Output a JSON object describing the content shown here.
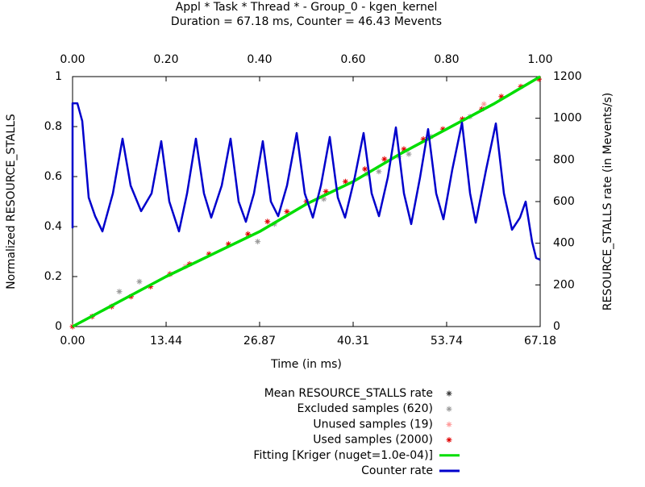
{
  "chart_data": {
    "type": "line",
    "title": "Appl * Task * Thread * - Group_0 - kgen_kernel",
    "subtitle": "Duration = 67.18 ms, Counter = 46.43 Mevents",
    "xlabel": "Time (in ms)",
    "ylabel": "Normalized RESOURCE_STALLS",
    "y2label": "RESOURCE_STALLS rate (in Mevents/s)",
    "xlim": [
      0,
      67.18
    ],
    "xticks": [
      {
        "value": 0,
        "label": "0.00"
      },
      13.44,
      26.87,
      40.31,
      53.74,
      67.18
    ],
    "x2lim": [
      0,
      1
    ],
    "x2ticks": [
      {
        "value": 0,
        "label": "0.00"
      },
      {
        "value": 0.2,
        "label": "0.20"
      },
      {
        "value": 0.4,
        "label": "0.40"
      },
      {
        "value": 0.6,
        "label": "0.60"
      },
      {
        "value": 0.8,
        "label": "0.80"
      },
      {
        "value": 1,
        "label": "1.00"
      }
    ],
    "ylim": [
      0,
      1
    ],
    "yticks": [
      0,
      0.2,
      0.4,
      0.6,
      0.8,
      1
    ],
    "y2lim": [
      0,
      1200
    ],
    "y2ticks": [
      0,
      200,
      400,
      600,
      800,
      1000,
      1200
    ],
    "grid": false,
    "legend": "bottom",
    "series": [
      {
        "name": "Mean RESOURCE_STALLS rate",
        "color": "#333333",
        "style": "points",
        "axis": "y",
        "x": [],
        "values": []
      },
      {
        "name": "Excluded samples (620)",
        "color": "#999999",
        "style": "points",
        "axis": "y",
        "x": [
          6.72,
          9.6,
          26.6,
          29,
          36.1,
          42.3,
          44,
          46.9,
          48.3,
          51.5,
          57.1
        ],
        "values": [
          0.14,
          0.18,
          0.34,
          0.41,
          0.51,
          0.61,
          0.62,
          0.68,
          0.69,
          0.76,
          0.84
        ]
      },
      {
        "name": "Unused samples (19)",
        "color": "#ff9999",
        "style": "points",
        "axis": "y",
        "x": [
          16.2,
          35.9,
          59.1
        ],
        "values": [
          0.24,
          0.52,
          0.89
        ]
      },
      {
        "name": "Used samples (2000)",
        "color": "#e00000",
        "style": "points",
        "axis": "y",
        "x": [
          0,
          2.8,
          5.6,
          8.4,
          11.2,
          14,
          16.8,
          19.6,
          22.4,
          25.2,
          28,
          30.8,
          33.6,
          36.4,
          39.2,
          42,
          44.8,
          47.6,
          50.4,
          53.2,
          56,
          58.8,
          61.6,
          64.4,
          67
        ],
        "values": [
          0,
          0.04,
          0.08,
          0.12,
          0.16,
          0.21,
          0.25,
          0.29,
          0.33,
          0.37,
          0.42,
          0.46,
          0.5,
          0.54,
          0.58,
          0.63,
          0.67,
          0.71,
          0.75,
          0.79,
          0.83,
          0.87,
          0.92,
          0.96,
          0.99
        ]
      },
      {
        "name": "Fitting [Kriger (nuget=1.0e-04)]",
        "color": "#00dd00",
        "style": "lines",
        "axis": "y",
        "x": [
          0,
          6.72,
          13.44,
          20.15,
          26.87,
          33.59,
          40.31,
          47.02,
          53.74,
          60.46,
          67.18
        ],
        "values": [
          0,
          0.1,
          0.2,
          0.29,
          0.38,
          0.49,
          0.58,
          0.69,
          0.79,
          0.89,
          1
        ]
      },
      {
        "name": "Counter rate",
        "color": "#0000cc",
        "style": "lines",
        "axis": "y2",
        "x": [
          0,
          0,
          0.69,
          1.39,
          2.32,
          3.24,
          4.29,
          5.79,
          7.18,
          8.34,
          9.85,
          11.35,
          12.74,
          13.9,
          15.29,
          16.45,
          17.72,
          18.88,
          19.92,
          21.43,
          22.7,
          23.86,
          24.9,
          26.06,
          27.33,
          28.49,
          29.54,
          30.81,
          32.2,
          33.36,
          34.52,
          35.68,
          36.95,
          38.11,
          39.15,
          40.54,
          41.81,
          42.97,
          44.02,
          45.29,
          46.45,
          47.61,
          48.65,
          49.92,
          51.08,
          52.24,
          53.28,
          54.56,
          55.95,
          57.11,
          57.92,
          59.42,
          60.81,
          61.97,
          63.13,
          64.28,
          65.09,
          66.02,
          66.6,
          67.18
        ],
        "values": [
          472,
          1072,
          1072,
          987,
          619,
          530,
          457,
          639,
          902,
          677,
          554,
          639,
          890,
          600,
          457,
          639,
          902,
          639,
          523,
          677,
          902,
          600,
          503,
          639,
          890,
          600,
          530,
          677,
          929,
          639,
          523,
          677,
          910,
          619,
          523,
          716,
          929,
          639,
          530,
          716,
          956,
          639,
          492,
          716,
          948,
          639,
          515,
          755,
          979,
          639,
          499,
          755,
          975,
          639,
          465,
          523,
          600,
          406,
          329,
          321
        ]
      }
    ]
  }
}
